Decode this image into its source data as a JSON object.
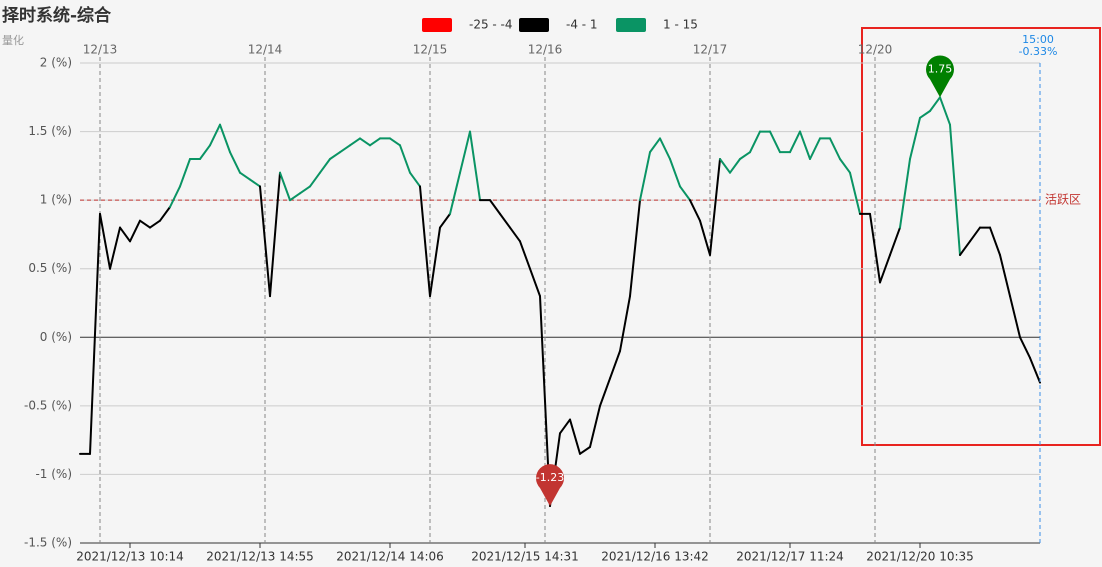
{
  "chart_data": {
    "type": "line",
    "title": "择时系统-综合",
    "subtitle": "量化",
    "values": [
      -0.85,
      -0.85,
      0.9,
      0.5,
      0.8,
      0.7,
      0.85,
      0.8,
      0.85,
      0.95,
      1.1,
      1.3,
      1.3,
      1.4,
      1.55,
      1.35,
      1.2,
      1.15,
      1.1,
      0.3,
      1.2,
      1.0,
      1.05,
      1.1,
      1.2,
      1.3,
      1.35,
      1.4,
      1.45,
      1.4,
      1.45,
      1.45,
      1.4,
      1.2,
      1.1,
      0.3,
      0.8,
      0.9,
      1.2,
      1.5,
      1.0,
      1.0,
      0.9,
      0.8,
      0.7,
      0.5,
      0.3,
      -1.23,
      -0.7,
      -0.6,
      -0.85,
      -0.8,
      -0.5,
      -0.3,
      -0.1,
      0.3,
      1.0,
      1.35,
      1.45,
      1.3,
      1.1,
      1.0,
      0.85,
      0.6,
      1.3,
      1.2,
      1.3,
      1.35,
      1.5,
      1.5,
      1.35,
      1.35,
      1.5,
      1.3,
      1.45,
      1.45,
      1.3,
      1.2,
      0.9,
      0.9,
      0.4,
      0.6,
      0.8,
      1.3,
      1.6,
      1.65,
      1.75,
      1.55,
      0.6,
      0.7,
      0.8,
      0.8,
      0.6,
      0.3,
      0.0,
      -0.15,
      -0.33
    ],
    "pieces": [
      {
        "label": "-25 - -4",
        "min": -25,
        "max": -4,
        "color": "#ff0000"
      },
      {
        "label": "-4 - 1",
        "min": -4,
        "max": 1,
        "color": "#000000"
      },
      {
        "label": "1 - 15",
        "min": 1,
        "max": 15,
        "color": "#0a9464"
      }
    ],
    "xlim": [
      0,
      96
    ],
    "xticks": [
      {
        "value": 5,
        "label": "2021/12/13 10:14"
      },
      {
        "value": 18,
        "label": "2021/12/13 14:55"
      },
      {
        "value": 31,
        "label": "2021/12/14 14:06"
      },
      {
        "value": 44.5,
        "label": "2021/12/15 14:31"
      },
      {
        "value": 57.5,
        "label": "2021/12/16 13:42"
      },
      {
        "value": 71,
        "label": "2021/12/17 11:24"
      },
      {
        "value": 84,
        "label": "2021/12/20 10:35"
      }
    ],
    "date_markers": [
      {
        "value": 2,
        "label": "12/13"
      },
      {
        "value": 18.5,
        "label": "12/14"
      },
      {
        "value": 35,
        "label": "12/15"
      },
      {
        "value": 46.5,
        "label": "12/16"
      },
      {
        "value": 63,
        "label": "12/17"
      },
      {
        "value": 79.5,
        "label": "12/20"
      }
    ],
    "ylim": [
      -1.5,
      2
    ],
    "yticks": [
      {
        "value": 2,
        "label": "2 (%)"
      },
      {
        "value": 1.5,
        "label": "1.5 (%)"
      },
      {
        "value": 1,
        "label": "1 (%)"
      },
      {
        "value": 0.5,
        "label": "0.5 (%)"
      },
      {
        "value": 0,
        "label": "0 (%)"
      },
      {
        "value": -0.5,
        "label": "-0.5 (%)"
      },
      {
        "value": -1,
        "label": "-1 (%)"
      },
      {
        "value": -1.5,
        "label": "-1.5 (%)"
      }
    ],
    "grid": true,
    "mark_line": {
      "value": 1,
      "label": "活跃区",
      "color": "#c23531"
    },
    "pin_labels": {
      "max": "1.75",
      "min": "-1.23"
    },
    "pin_colors": {
      "max": "#008000",
      "min": "#c23531"
    },
    "last_label": {
      "time": "15:00",
      "value_label": "-0.33%"
    }
  }
}
